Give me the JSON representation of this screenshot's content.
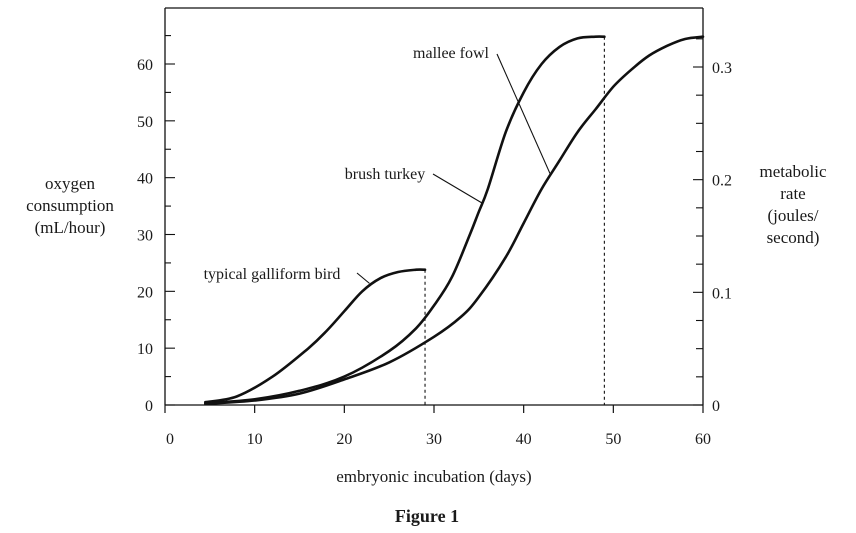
{
  "chart_data": {
    "type": "line",
    "title": "",
    "caption": "Figure 1",
    "xlabel": "embryonic incubation (days)",
    "ylabel_left": [
      "oxygen",
      "consumption",
      "(mL/hour)"
    ],
    "ylabel_right": [
      "metabolic",
      "rate",
      "(joules/",
      "second)"
    ],
    "xlim": [
      0,
      60
    ],
    "ylim_left": [
      0,
      70
    ],
    "ylim_right": [
      0,
      0.35
    ],
    "x_ticks": [
      0,
      10,
      20,
      30,
      40,
      50,
      60
    ],
    "y_ticks_left": [
      0,
      10,
      20,
      30,
      40,
      50,
      60
    ],
    "y_ticks_right": [
      0,
      0.1,
      0.2,
      0.3
    ],
    "y_tick_labels_right": [
      "0",
      "0.1",
      "0.2",
      "0.3"
    ],
    "grid": false,
    "legend": "none",
    "series": [
      {
        "name": "typical galliform bird",
        "x": [
          4.5,
          8,
          12,
          16,
          18,
          20,
          22,
          24,
          26,
          28,
          29
        ],
        "y": [
          0.5,
          1.5,
          5,
          10,
          13,
          16.5,
          20,
          22.3,
          23.4,
          23.8,
          23.8
        ],
        "end_x": 29
      },
      {
        "name": "brush turkey",
        "x": [
          4.5,
          10,
          15,
          20,
          25,
          28,
          30,
          32,
          34,
          35,
          36,
          38,
          40,
          42,
          44,
          46,
          48,
          49
        ],
        "y": [
          0.3,
          1,
          2.5,
          5,
          9.5,
          13.5,
          17.5,
          22.5,
          30,
          34,
          38,
          48,
          55,
          60,
          63,
          64.5,
          64.8,
          64.8
        ],
        "end_x": 49
      },
      {
        "name": "mallee fowl",
        "x": [
          4.5,
          10,
          15,
          20,
          25,
          30,
          33,
          35,
          38,
          40,
          42,
          44,
          46,
          48,
          50,
          52,
          54,
          56,
          58,
          60
        ],
        "y": [
          0.2,
          0.8,
          2,
          4.5,
          7.5,
          12,
          15.5,
          19,
          26,
          32,
          38,
          43,
          48,
          52,
          56,
          59,
          61.5,
          63.2,
          64.4,
          64.8
        ],
        "end_x": 60
      }
    ],
    "annotations": [
      {
        "text": "mallee fowl",
        "series": "mallee fowl"
      },
      {
        "text": "brush turkey",
        "series": "brush turkey"
      },
      {
        "text": "typical galliform bird",
        "series": "typical galliform bird"
      }
    ]
  }
}
